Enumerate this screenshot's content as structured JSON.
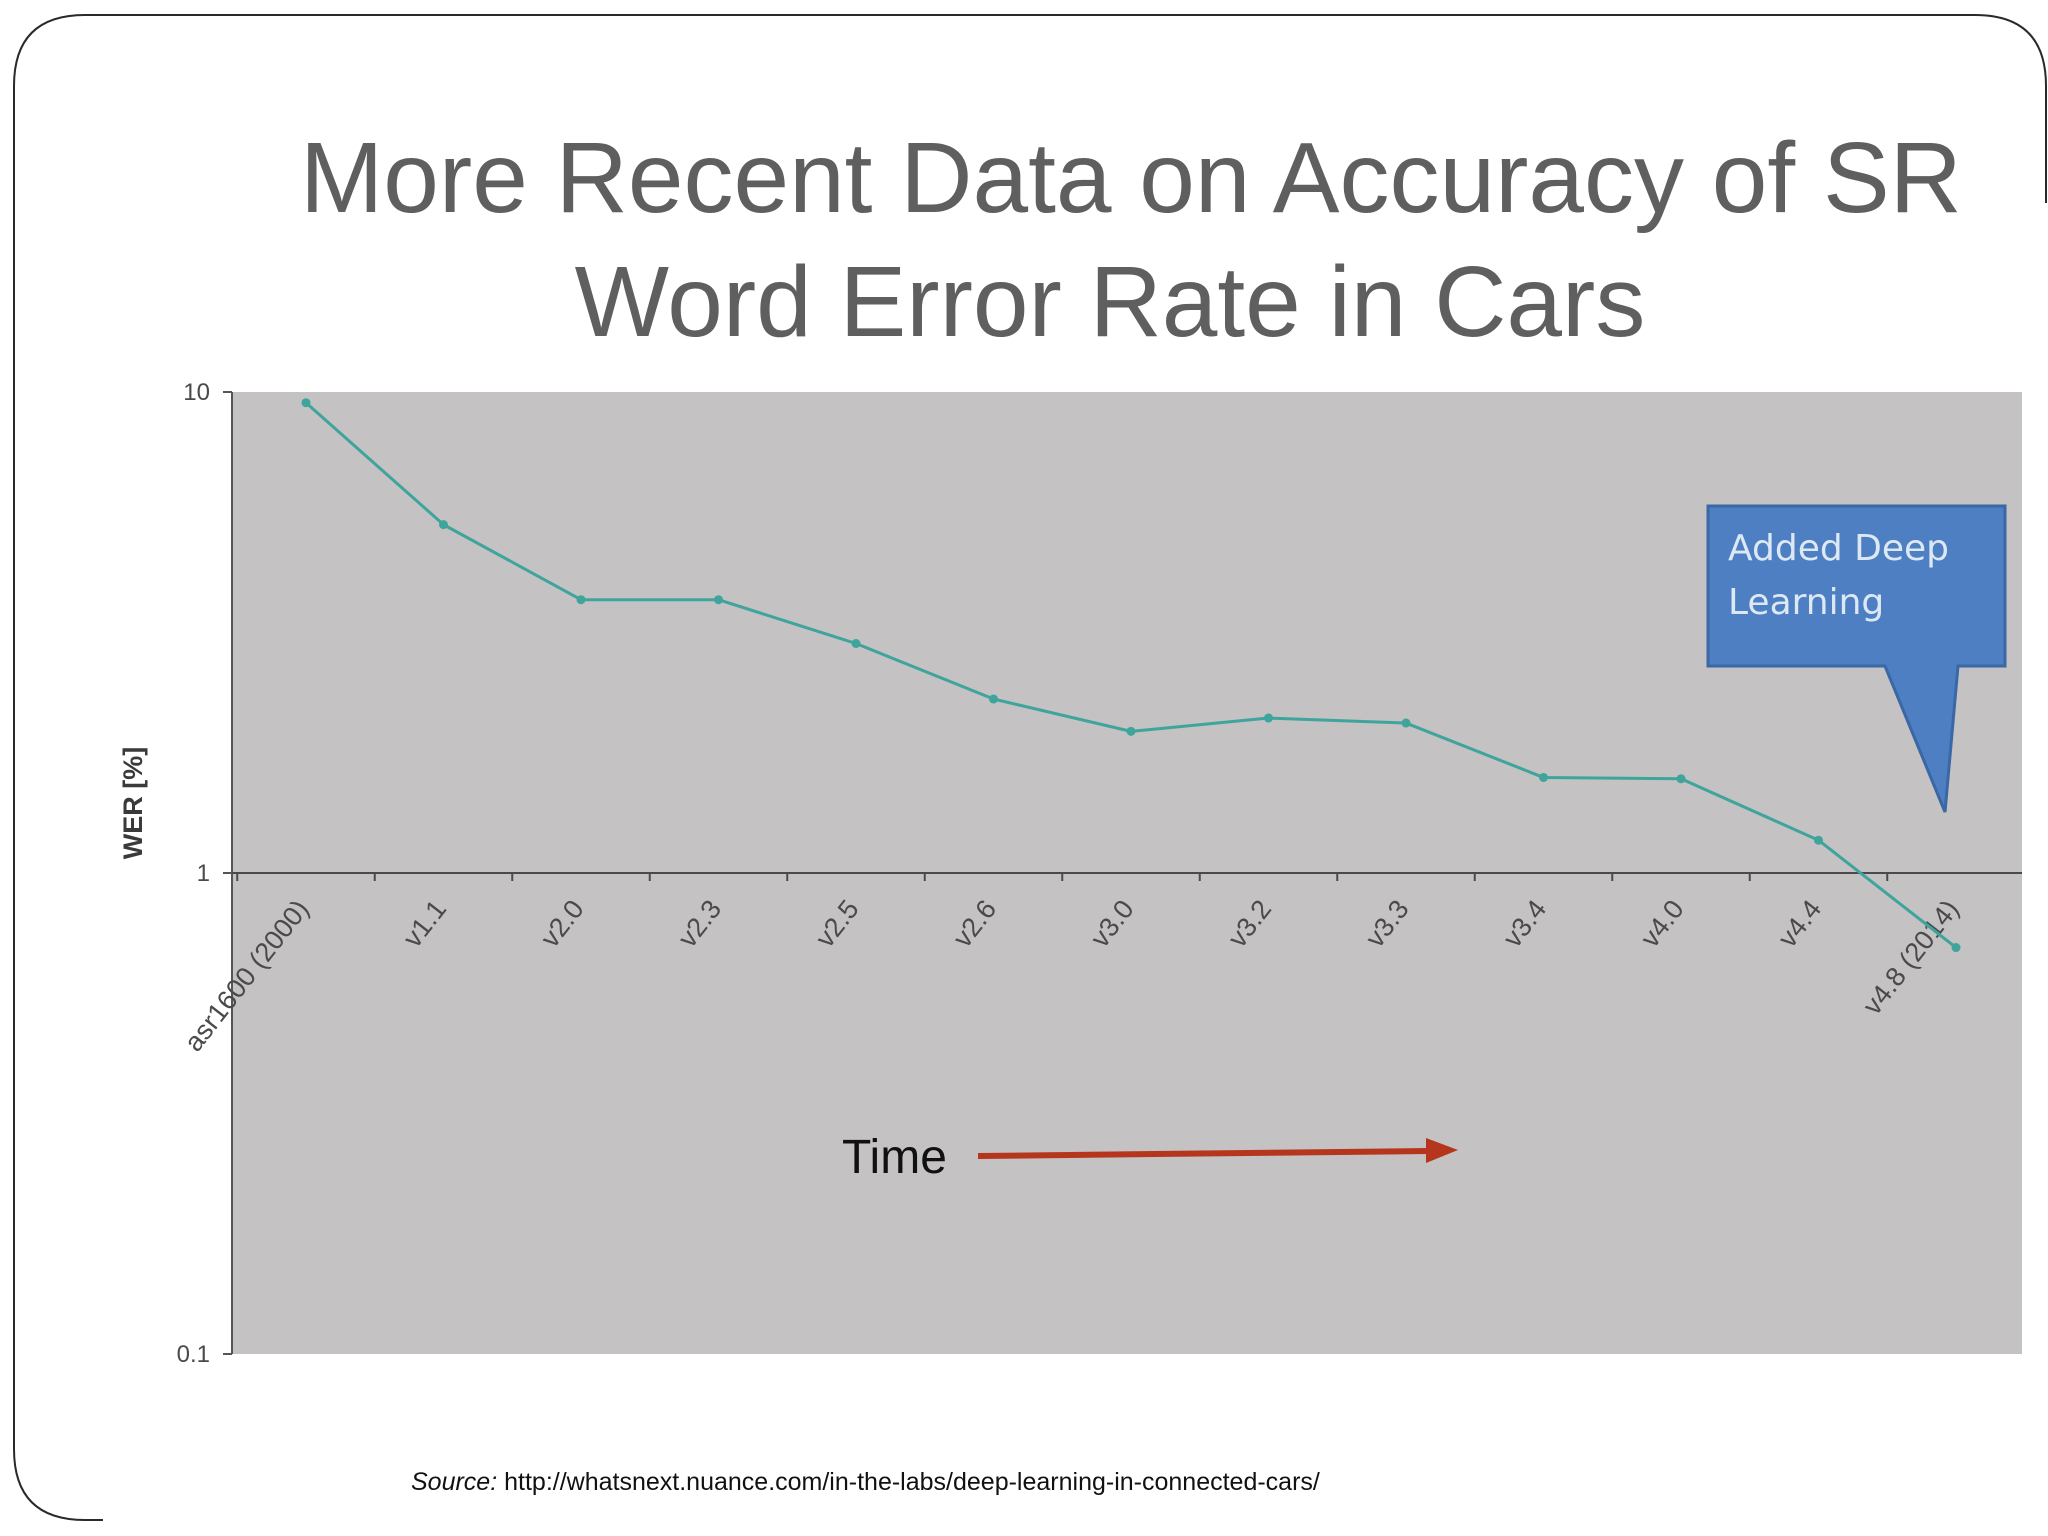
{
  "slide": {
    "title_line1": "More Recent Data on Accuracy of SR",
    "title_line2": "Word Error Rate in Cars",
    "source_prefix": "Source:",
    "source_url": "http://whatsnext.nuance.com/in-the-labs/deep-learning-in-connected-cars/"
  },
  "colors": {
    "plot_background": "#c4c2c3",
    "line": "#3ea49c",
    "callout_fill": "#4d7fc2",
    "arrow": "#b5361d",
    "title": "#5f5f5f"
  },
  "chart_data": {
    "type": "line",
    "title": "",
    "xlabel": "",
    "ylabel": "WER [%]",
    "yscale": "log",
    "ylim": [
      0.1,
      10
    ],
    "yticks": [
      "10",
      "1",
      "0.1"
    ],
    "categories": [
      "asr1600 (2000)",
      "v1.1",
      "v2.0",
      "v2.3",
      "v2.5",
      "v2.6",
      "v3.0",
      "v3.2",
      "v3.3",
      "v3.4",
      "v4.0",
      "v4.4",
      "v4.8 (2014)"
    ],
    "series": [
      {
        "name": "",
        "values": [
          9.5,
          5.3,
          3.7,
          3.7,
          3.0,
          2.3,
          1.97,
          2.1,
          2.05,
          1.58,
          1.57,
          1.17,
          0.7
        ]
      }
    ],
    "annotations": {
      "callout": "Added Deep Learning",
      "callout_lines": [
        "Added Deep",
        "Learning"
      ],
      "arrow_label": "Time"
    },
    "grid": false,
    "legend": "none"
  }
}
